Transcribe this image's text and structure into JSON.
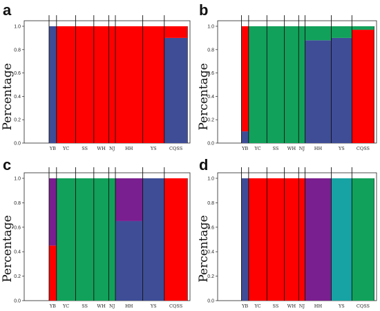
{
  "colors": {
    "blue": "#3f4d97",
    "red": "#ff0000",
    "green": "#12a15a",
    "purple": "#7a1f8f",
    "teal": "#17a3a3"
  },
  "chart_data": [
    {
      "panel": "a",
      "type": "bar",
      "ylabel": "Percentage",
      "ylim": [
        0,
        1.0
      ],
      "yticks": [
        "0.0",
        "0.2",
        "0.4",
        "0.6",
        "0.8",
        "1.0"
      ],
      "groups": [
        {
          "name": "YB",
          "composition": [
            {
              "color": "blue",
              "value": 1.0
            }
          ]
        },
        {
          "name": "YC",
          "composition": [
            {
              "color": "red",
              "value": 1.0
            }
          ]
        },
        {
          "name": "SS",
          "composition": [
            {
              "color": "red",
              "value": 1.0
            }
          ]
        },
        {
          "name": "WH",
          "composition": [
            {
              "color": "red",
              "value": 1.0
            }
          ]
        },
        {
          "name": "NJ",
          "composition": [
            {
              "color": "red",
              "value": 1.0
            }
          ]
        },
        {
          "name": "HH",
          "composition": [
            {
              "color": "red",
              "value": 1.0
            }
          ]
        },
        {
          "name": "YS",
          "composition": [
            {
              "color": "red",
              "value": 1.0
            }
          ]
        },
        {
          "name": "CQSS",
          "composition": [
            {
              "color": "blue",
              "value": 0.9
            },
            {
              "color": "red",
              "value": 0.1
            }
          ]
        }
      ]
    },
    {
      "panel": "b",
      "type": "bar",
      "ylabel": "Percentage",
      "ylim": [
        0,
        1.0
      ],
      "yticks": [
        "0.0",
        "0.2",
        "0.4",
        "0.6",
        "0.8",
        "1.0"
      ],
      "groups": [
        {
          "name": "YB",
          "composition": [
            {
              "color": "blue",
              "value": 0.1
            },
            {
              "color": "red",
              "value": 0.9
            }
          ]
        },
        {
          "name": "YC",
          "composition": [
            {
              "color": "green",
              "value": 1.0
            }
          ]
        },
        {
          "name": "SS",
          "composition": [
            {
              "color": "green",
              "value": 1.0
            }
          ]
        },
        {
          "name": "WH",
          "composition": [
            {
              "color": "green",
              "value": 1.0
            }
          ]
        },
        {
          "name": "NJ",
          "composition": [
            {
              "color": "green",
              "value": 1.0
            }
          ]
        },
        {
          "name": "HH",
          "composition": [
            {
              "color": "blue",
              "value": 0.88
            },
            {
              "color": "green",
              "value": 0.12
            }
          ]
        },
        {
          "name": "YS",
          "composition": [
            {
              "color": "blue",
              "value": 0.9
            },
            {
              "color": "green",
              "value": 0.1
            }
          ]
        },
        {
          "name": "CQSS",
          "composition": [
            {
              "color": "red",
              "value": 0.97
            },
            {
              "color": "green",
              "value": 0.03
            }
          ]
        }
      ]
    },
    {
      "panel": "c",
      "type": "bar",
      "ylabel": "Percentage",
      "ylim": [
        0,
        1.0
      ],
      "yticks": [
        "0.0",
        "0.2",
        "0.4",
        "0.6",
        "0.8",
        "1.0"
      ],
      "groups": [
        {
          "name": "YB",
          "composition": [
            {
              "color": "red",
              "value": 0.45
            },
            {
              "color": "purple",
              "value": 0.55
            }
          ]
        },
        {
          "name": "YC",
          "composition": [
            {
              "color": "green",
              "value": 1.0
            }
          ]
        },
        {
          "name": "SS",
          "composition": [
            {
              "color": "green",
              "value": 1.0
            }
          ]
        },
        {
          "name": "WH",
          "composition": [
            {
              "color": "green",
              "value": 1.0
            }
          ]
        },
        {
          "name": "NJ",
          "composition": [
            {
              "color": "green",
              "value": 1.0
            }
          ]
        },
        {
          "name": "HH",
          "composition": [
            {
              "color": "blue",
              "value": 0.65
            },
            {
              "color": "purple",
              "value": 0.35
            }
          ]
        },
        {
          "name": "YS",
          "composition": [
            {
              "color": "blue",
              "value": 1.0
            }
          ]
        },
        {
          "name": "CQSS",
          "composition": [
            {
              "color": "red",
              "value": 1.0
            }
          ]
        }
      ]
    },
    {
      "panel": "d",
      "type": "bar",
      "ylabel": "Percentage",
      "ylim": [
        0,
        1.0
      ],
      "yticks": [
        "0.0",
        "0.2",
        "0.4",
        "0.6",
        "0.8",
        "1.0"
      ],
      "groups": [
        {
          "name": "YB",
          "composition": [
            {
              "color": "blue",
              "value": 1.0
            }
          ]
        },
        {
          "name": "YC",
          "composition": [
            {
              "color": "red",
              "value": 1.0
            }
          ]
        },
        {
          "name": "SS",
          "composition": [
            {
              "color": "red",
              "value": 1.0
            }
          ]
        },
        {
          "name": "WH",
          "composition": [
            {
              "color": "red",
              "value": 1.0
            }
          ]
        },
        {
          "name": "NJ",
          "composition": [
            {
              "color": "red",
              "value": 1.0
            }
          ]
        },
        {
          "name": "HH",
          "composition": [
            {
              "color": "purple",
              "value": 1.0
            }
          ]
        },
        {
          "name": "YS",
          "composition": [
            {
              "color": "teal",
              "value": 1.0
            }
          ]
        },
        {
          "name": "CQSS",
          "composition": [
            {
              "color": "green",
              "value": 1.0
            }
          ]
        }
      ]
    }
  ]
}
